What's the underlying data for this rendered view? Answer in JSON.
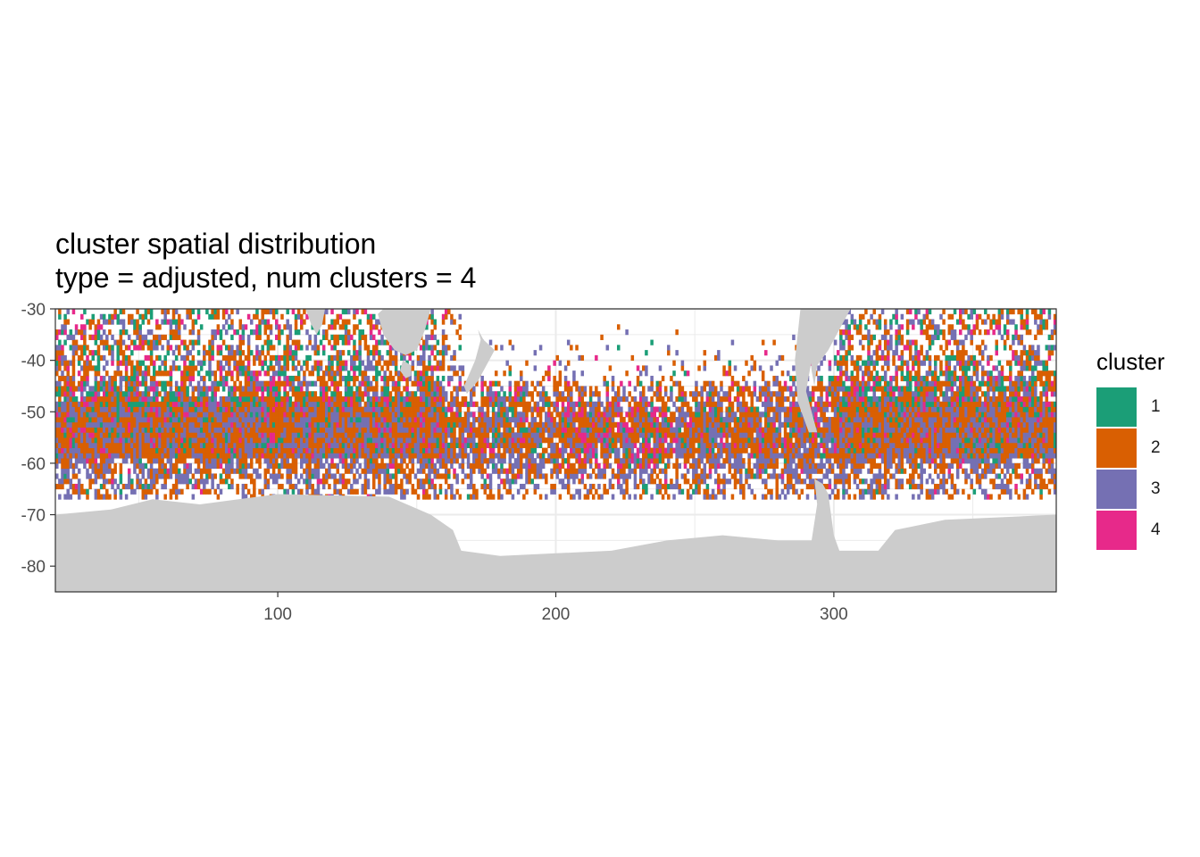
{
  "chart_data": {
    "type": "heatmap",
    "title": "cluster spatial distribution",
    "subtitle": "type = adjusted, num clusters = 4",
    "xlabel": "",
    "ylabel": "",
    "xlim": [
      20,
      380
    ],
    "ylim": [
      -85,
      -30
    ],
    "x_ticks": [
      "100",
      "200",
      "300"
    ],
    "x_tick_values": [
      100,
      200,
      300
    ],
    "y_ticks": [
      "-30",
      "-40",
      "-50",
      "-60",
      "-70",
      "-80"
    ],
    "y_tick_values": [
      -30,
      -40,
      -50,
      -60,
      -70,
      -80
    ],
    "grid": true,
    "legend": {
      "title": "cluster",
      "placement": "right",
      "entries": [
        {
          "label": "1",
          "color": "#1B9E77"
        },
        {
          "label": "2",
          "color": "#D95F02"
        },
        {
          "label": "3",
          "color": "#7570B3"
        },
        {
          "label": "4",
          "color": "#E7298A"
        }
      ]
    },
    "land_color": "#CCCCCC",
    "cell_size_deg": 1,
    "dominant_cluster_by_region": [
      {
        "lon_range": [
          20,
          160
        ],
        "lat_range": [
          -60,
          -35
        ],
        "clusters": [
          "2",
          "3",
          "1",
          "4"
        ]
      },
      {
        "lon_range": [
          160,
          300
        ],
        "lat_range": [
          -65,
          -45
        ],
        "clusters": [
          "2",
          "3",
          "4",
          "1"
        ]
      },
      {
        "lon_range": [
          300,
          380
        ],
        "lat_range": [
          -60,
          -35
        ],
        "clusters": [
          "2",
          "3",
          "1",
          "4"
        ]
      }
    ]
  }
}
